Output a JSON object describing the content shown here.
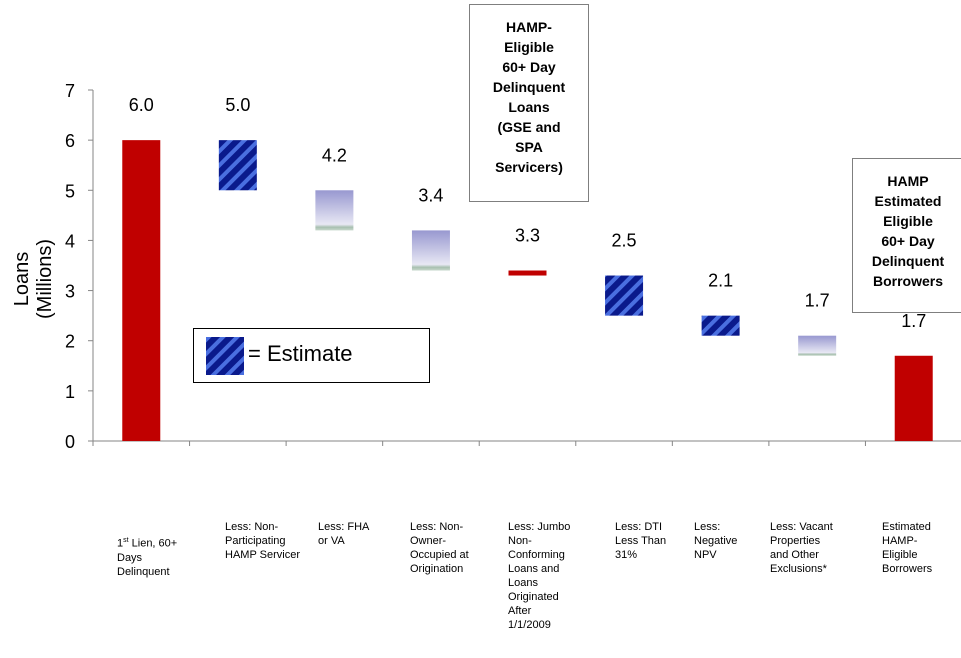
{
  "chart_data": {
    "type": "bar",
    "subtype": "waterfall",
    "ylabel": "Loans (Millions)",
    "ylim": [
      0,
      7
    ],
    "yticks": [
      "0",
      "1",
      "2",
      "3",
      "4",
      "5",
      "6",
      "7"
    ],
    "grid": false,
    "categories": [
      "1st Lien, 60+ Days Delinquent",
      "Less: Non-Participating HAMP Servicer",
      "Less: FHA or VA",
      "Less: Non-Owner-Occupied at Origination",
      "Less: Jumbo Non-Conforming Loans and Loans Originated After 1/1/2009",
      "Less: DTI Less Than 31%",
      "Less: Negative NPV",
      "Less: Vacant Properties and Other Exclusions*",
      "Estimated HAMP-Eligible Borrowers"
    ],
    "bars": [
      {
        "bottom": 0.0,
        "top": 6.0,
        "label": "6.0",
        "style": "total"
      },
      {
        "bottom": 5.0,
        "top": 6.0,
        "label": "5.0",
        "style": "estimate"
      },
      {
        "bottom": 4.2,
        "top": 5.0,
        "label": "4.2",
        "style": "gradient"
      },
      {
        "bottom": 3.4,
        "top": 4.2,
        "label": "3.4",
        "style": "gradient"
      },
      {
        "bottom": 3.3,
        "top": 3.4,
        "label": "3.3",
        "style": "total"
      },
      {
        "bottom": 2.5,
        "top": 3.3,
        "label": "2.5",
        "style": "estimate"
      },
      {
        "bottom": 2.1,
        "top": 2.5,
        "label": "2.1",
        "style": "estimate"
      },
      {
        "bottom": 1.7,
        "top": 2.1,
        "label": "1.7",
        "style": "gradient"
      },
      {
        "bottom": 0.0,
        "top": 1.7,
        "label": "1.7",
        "style": "total"
      }
    ],
    "colors": {
      "total": "#C00000",
      "estimate_dark": "#0A1A8C",
      "estimate_light": "#4A6FE0",
      "gradient_top": "#9898D0",
      "gradient_bottom": "#E8E8F4",
      "gradient_edge": "#A8C0B0"
    }
  },
  "category_display": [
    "",
    "Less: Non-\nParticipating\nHAMP Servicer",
    "Less: FHA\nor VA",
    "Less: Non-\nOwner-\nOccupied at\nOrigination",
    "Less: Jumbo\nNon-\nConforming\nLoans and\nLoans\nOriginated\nAfter\n1/1/2009",
    "Less: DTI\nLess Than\n31%",
    "Less:\nNegative\nNPV",
    "Less: Vacant\nProperties\nand Other\nExclusions*",
    "Estimated\nHAMP-\nEligible\nBorrowers"
  ],
  "first_category": {
    "ord": "1",
    "sup": "st",
    "line1_rest": " Lien, 60+",
    "rest": "Days\nDelinquent"
  },
  "callouts": {
    "hamp_eligible_loans": "HAMP-\nEligible\n60+ Day\nDelinquent\nLoans\n(GSE and\nSPA\nServicers)",
    "hamp_estimated_borrowers": "HAMP\nEstimated\nEligible\n60+ Day\nDelinquent\nBorrowers"
  },
  "legend": {
    "label": "= Estimate"
  }
}
